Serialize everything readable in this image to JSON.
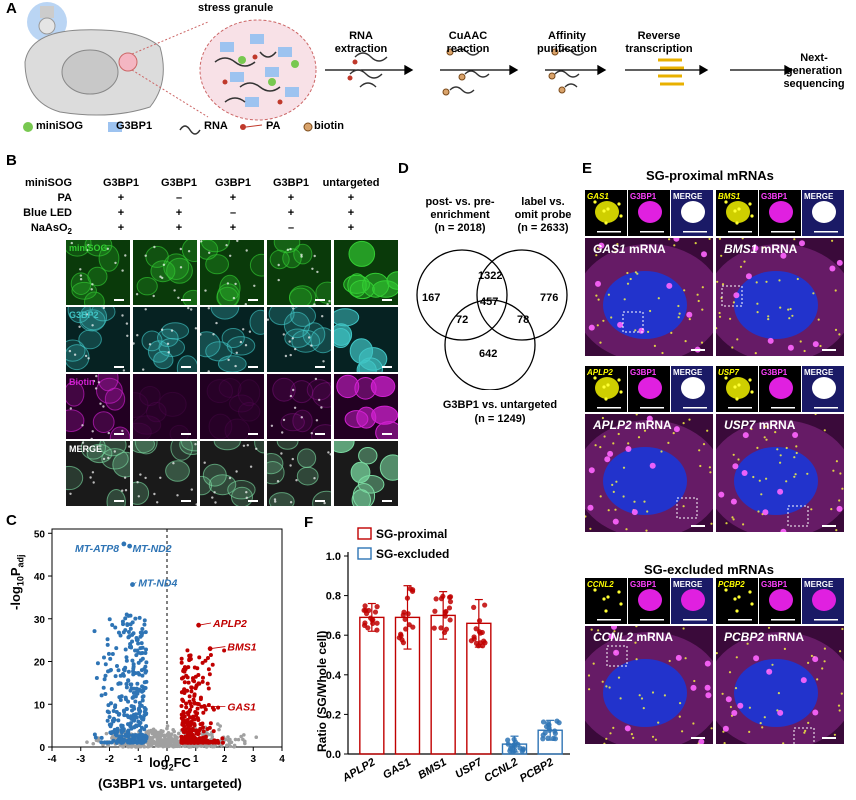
{
  "panels": {
    "A": {
      "label": "A",
      "stress_granule": "stress granule",
      "steps": [
        "RNA extraction",
        "CuAAC reaction",
        "Affinity purification",
        "Reverse transcription",
        "Next-generation sequencing"
      ],
      "legend": [
        "miniSOG",
        "G3BP1",
        "RNA",
        "PA",
        "biotin"
      ]
    },
    "B": {
      "label": "B",
      "row_labels": [
        "miniSOG",
        "PA",
        "Blue LED",
        "NaAsO",
        "2"
      ],
      "columns": [
        {
          "header": "G3BP1",
          "pa": "+",
          "led": "+",
          "naaso2": "+"
        },
        {
          "header": "G3BP1",
          "pa": "–",
          "led": "+",
          "naaso2": "+"
        },
        {
          "header": "G3BP1",
          "pa": "+",
          "led": "–",
          "naaso2": "+"
        },
        {
          "header": "G3BP1",
          "pa": "+",
          "led": "+",
          "naaso2": "–"
        },
        {
          "header": "untargeted",
          "pa": "+",
          "led": "+",
          "naaso2": "+"
        }
      ],
      "channels": [
        "miniSOG",
        "G3BP2",
        "Biotin",
        "MERGE"
      ]
    },
    "C": {
      "label": "C",
      "ylabel_main": "-log",
      "ylabel_sub10": "10",
      "ylabel_p": "P",
      "ylabel_adj": "adj",
      "xlabel_main": "log",
      "xlabel_sub": "2",
      "xlabel_fc": "FC",
      "xlabel_line2": "(G3BP1 vs. untargeted)",
      "xticks": [
        "-4",
        "-3",
        "-2",
        "-1",
        "0",
        "1",
        "2",
        "3",
        "4"
      ],
      "yticks": [
        "0",
        "10",
        "20",
        "30",
        "40",
        "50"
      ],
      "annotations_blue": [
        "MT-ATP8",
        "MT-ND2",
        "MT-ND4"
      ],
      "annotations_red": [
        "APLP2",
        "BMS1",
        "GAS1"
      ]
    },
    "D": {
      "label": "D",
      "set1": "post- vs. pre-",
      "set1b": "enrichment",
      "set1n": "(n = 2018)",
      "set2": "label vs.",
      "set2b": "omit probe",
      "set2n": "(n = 2633)",
      "set3": "G3BP1 vs. untargeted",
      "set3n": "(n = 1249)",
      "regions": {
        "only1": "167",
        "one_two": "1322",
        "only2": "776",
        "all": "457",
        "one_three": "72",
        "two_three": "78",
        "only3": "642"
      }
    },
    "E": {
      "label": "E",
      "proximal_title": "SG-proximal mRNAs",
      "excluded_title": "SG-excluded mRNAs",
      "cells": [
        {
          "gene": "GAS1",
          "suffix": " mRNA"
        },
        {
          "gene": "BMS1",
          "suffix": " mRNA"
        },
        {
          "gene": "APLP2",
          "suffix": " mRNA"
        },
        {
          "gene": "USP7",
          "suffix": " mRNA"
        },
        {
          "gene": "CCNL2",
          "suffix": " mRNA"
        },
        {
          "gene": "PCBP2",
          "suffix": " mRNA"
        }
      ],
      "inset_g3bp1": "G3BP1",
      "inset_merge": "MERGE"
    },
    "F": {
      "label": "F",
      "legend_proximal": "SG-proximal",
      "legend_excluded": "SG-excluded",
      "ylabel": "Ratio (SG/Whole cell)",
      "yticks": [
        "0.0",
        "0.2",
        "0.4",
        "0.6",
        "0.8",
        "1.0"
      ]
    }
  },
  "chart_data": [
    {
      "type": "bar",
      "panel": "F",
      "ylabel": "Ratio (SG/Whole cell)",
      "ylim": [
        0,
        1.0
      ],
      "categories": [
        "APLP2",
        "GAS1",
        "BMS1",
        "USP7",
        "CCNL2",
        "PCBP2"
      ],
      "series": [
        {
          "name": "SG-proximal",
          "values": [
            0.69,
            0.69,
            0.7,
            0.66,
            null,
            null
          ],
          "errors": [
            0.07,
            0.16,
            0.12,
            0.12,
            null,
            null
          ]
        },
        {
          "name": "SG-excluded",
          "values": [
            null,
            null,
            null,
            null,
            0.05,
            0.12
          ],
          "errors": [
            null,
            null,
            null,
            null,
            0.04,
            0.05
          ]
        }
      ]
    },
    {
      "type": "scatter",
      "panel": "C",
      "xlabel": "log2FC (G3BP1 vs. untargeted)",
      "ylabel": "-log10Padj",
      "xlim": [
        -4,
        4
      ],
      "ylim": [
        0,
        51
      ],
      "labeled_points": [
        {
          "name": "MT-ATP8",
          "x": -1.5,
          "y": 47.5
        },
        {
          "name": "MT-ND2",
          "x": -1.3,
          "y": 47
        },
        {
          "name": "MT-ND4",
          "x": -1.2,
          "y": 38
        },
        {
          "name": "APLP2",
          "x": 1.1,
          "y": 28.5
        },
        {
          "name": "BMS1",
          "x": 1.5,
          "y": 23
        },
        {
          "name": "GAS1",
          "x": 1.3,
          "y": 9.5
        }
      ]
    }
  ],
  "colors": {
    "blue": "#2e74b5",
    "red": "#c00000",
    "grey": "#a0a0a0",
    "magenta": "#d21fd2",
    "green": "#34c934",
    "cyan": "#3fc5c5",
    "nucleus": "#2233cc"
  }
}
